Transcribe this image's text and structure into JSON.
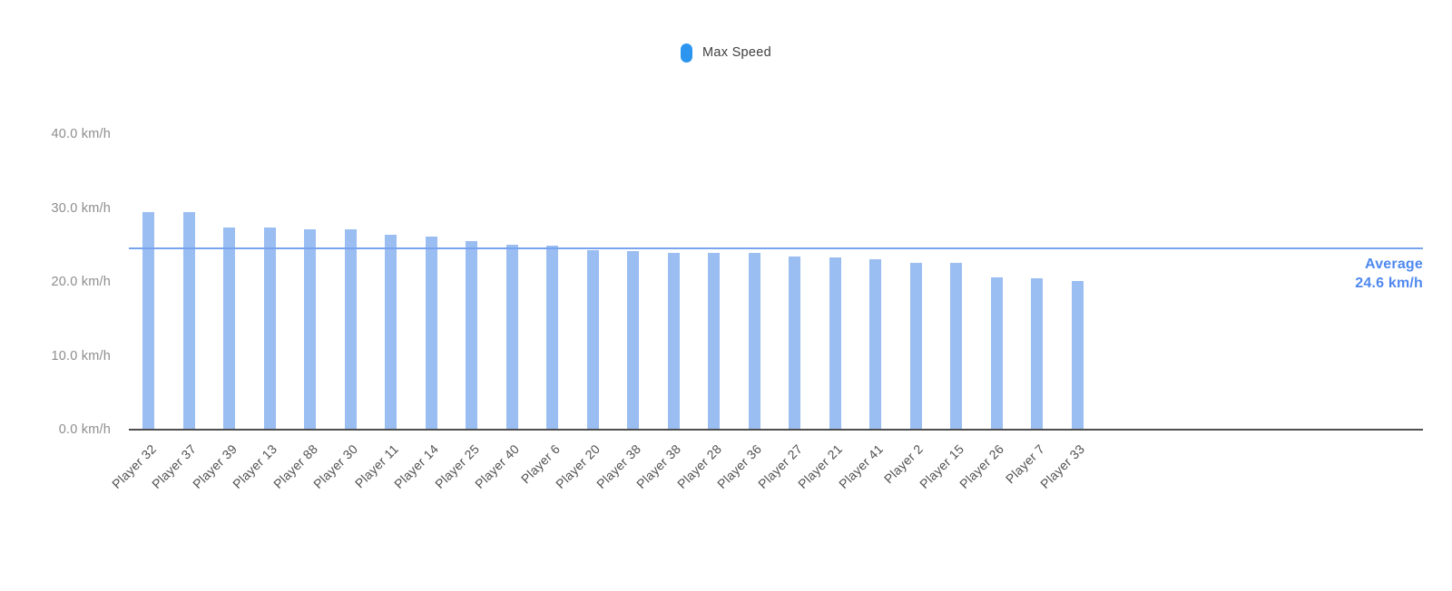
{
  "legend": {
    "items": [
      {
        "label": "Max Speed",
        "marker_color": "#2b95f0"
      }
    ]
  },
  "chart_data": {
    "type": "bar",
    "title": "",
    "xlabel": "",
    "ylabel": "",
    "unit": "km/h",
    "categories": [
      "Player 32",
      "Player 37",
      "Player 39",
      "Player 13",
      "Player 88",
      "Player 30",
      "Player 11",
      "Player 14",
      "Player 25",
      "Player 40",
      "Player 6",
      "Player 20",
      "Player 38",
      "Player 38",
      "Player 28",
      "Player 36",
      "Player 27",
      "Player 21",
      "Player 41",
      "Player 2",
      "Player 15",
      "Player 26",
      "Player 7",
      "Player 33"
    ],
    "series": [
      {
        "name": "Max Speed",
        "color": "#9abdf2",
        "values": [
          29.5,
          29.5,
          27.4,
          27.4,
          27.2,
          27.2,
          26.4,
          26.2,
          25.6,
          25.1,
          24.9,
          24.3,
          24.2,
          23.9,
          24.0,
          24.0,
          23.5,
          23.3,
          23.1,
          22.6,
          22.6,
          20.7,
          20.5,
          20.2
        ]
      }
    ],
    "ylim": [
      0,
      40
    ],
    "yticks": [
      {
        "value": 0,
        "label": "0.0 km/h"
      },
      {
        "value": 10,
        "label": "10.0 km/h"
      },
      {
        "value": 20,
        "label": "20.0 km/h"
      },
      {
        "value": 30,
        "label": "30.0 km/h"
      },
      {
        "value": 40,
        "label": "40.0 km/h"
      }
    ],
    "grid": false,
    "legend_position": "top-center",
    "axis_color": "#4f4f4f",
    "average_line": {
      "value": 24.6,
      "color": "#78a3ee",
      "label_line1": "Average",
      "label_line2": "24.6 km/h",
      "label_color": "#4e88ef"
    }
  }
}
